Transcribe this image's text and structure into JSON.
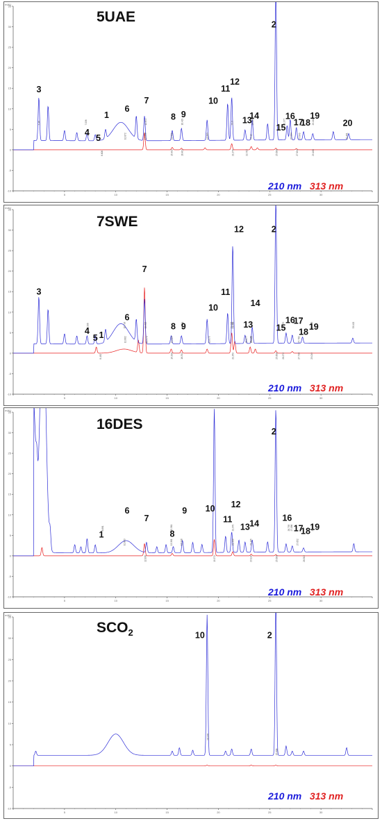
{
  "colors": {
    "nm210": "#2b2bd6",
    "nm313": "#e81e1e"
  },
  "legend": {
    "nm210": "210 nm",
    "nm313": "313 nm"
  },
  "chart_data": [
    {
      "type": "line",
      "title": "5UAE",
      "units": "mAU",
      "xlim": [
        0,
        35
      ],
      "ylim": [
        -10,
        35
      ],
      "yticks": [
        -10,
        -5,
        0,
        5,
        10,
        15,
        20,
        25,
        30,
        35
      ],
      "xticks": [
        0,
        5,
        10,
        15,
        20,
        25,
        30,
        35
      ],
      "xtick_labels": [
        "",
        "5",
        "10",
        "15",
        "20",
        "25",
        "30",
        ""
      ],
      "series": [
        {
          "name": "210 nm",
          "baseline": 2.5,
          "peaks": [
            [
              2.5,
              10.5
            ],
            [
              3.4,
              8.5
            ],
            [
              5.0,
              2.5
            ],
            [
              6.2,
              2.0
            ],
            [
              7.2,
              1.8
            ],
            [
              8.0,
              1.5
            ],
            [
              9.0,
              2.2
            ],
            [
              10.5,
              4.5
            ],
            [
              12.0,
              5.5
            ],
            [
              12.8,
              6.0
            ],
            [
              15.5,
              2.5
            ],
            [
              16.4,
              3.0
            ],
            [
              18.9,
              5.0
            ],
            [
              20.9,
              9.0
            ],
            [
              21.3,
              10.5
            ],
            [
              22.6,
              2.5
            ],
            [
              23.3,
              5.0
            ],
            [
              24.8,
              4.0
            ],
            [
              25.6,
              37.0
            ],
            [
              26.7,
              3.5
            ],
            [
              27.0,
              5.0
            ],
            [
              27.6,
              3.0
            ],
            [
              28.3,
              2.0
            ],
            [
              29.2,
              1.5
            ],
            [
              31.2,
              2.0
            ],
            [
              32.7,
              1.5
            ]
          ]
        },
        {
          "name": "313 nm",
          "baseline": 0.0,
          "peaks": [
            [
              12.8,
              4.2
            ],
            [
              15.5,
              0.6
            ],
            [
              16.4,
              0.4
            ],
            [
              18.7,
              0.5
            ],
            [
              21.3,
              1.5
            ],
            [
              23.2,
              0.8
            ],
            [
              23.8,
              0.5
            ],
            [
              25.6,
              0.4
            ],
            [
              27.6,
              0.3
            ]
          ]
        }
      ],
      "peak_labels": [
        {
          "text": "3",
          "x": 2.5,
          "y": 14
        },
        {
          "text": "4",
          "x": 7.2,
          "y": 3.5
        },
        {
          "text": "5",
          "x": 8.3,
          "y": 2.2
        },
        {
          "text": "1",
          "x": 9.1,
          "y": 7.8
        },
        {
          "text": "6",
          "x": 11.1,
          "y": 9.3
        },
        {
          "text": "7",
          "x": 13.0,
          "y": 11.3
        },
        {
          "text": "8",
          "x": 15.6,
          "y": 7.3
        },
        {
          "text": "9",
          "x": 16.6,
          "y": 7.9
        },
        {
          "text": "10",
          "x": 19.5,
          "y": 11.2
        },
        {
          "text": "11",
          "x": 20.7,
          "y": 14.2
        },
        {
          "text": "12",
          "x": 21.6,
          "y": 15.9
        },
        {
          "text": "13",
          "x": 22.8,
          "y": 6.5
        },
        {
          "text": "14",
          "x": 23.5,
          "y": 7.6
        },
        {
          "text": "2",
          "x": 25.4,
          "y": 29.8
        },
        {
          "text": "15",
          "x": 26.1,
          "y": 4.7
        },
        {
          "text": "16",
          "x": 27.0,
          "y": 7.5
        },
        {
          "text": "17",
          "x": 27.8,
          "y": 6.0
        },
        {
          "text": "18",
          "x": 28.5,
          "y": 5.9
        },
        {
          "text": "19",
          "x": 29.4,
          "y": 7.6
        },
        {
          "text": "20",
          "x": 32.6,
          "y": 5.8
        }
      ],
      "rt_labels": [
        "2.48",
        "12.838",
        "15.402",
        "16.429",
        "18.883",
        "21.370",
        "21.3",
        "23.12",
        "25.608",
        "26.377",
        "27.034",
        "27.634",
        "29.164",
        "32.461",
        "22.702",
        "23.293",
        "27.849",
        "29.168",
        "12.872",
        "10.872",
        "8.606",
        "7.038",
        "15.400",
        "16.402"
      ]
    },
    {
      "type": "line",
      "title": "7SWE",
      "units": "mAU",
      "xlim": [
        0,
        35
      ],
      "ylim": [
        -10,
        35
      ],
      "yticks": [
        -10,
        -5,
        0,
        5,
        10,
        15,
        20,
        25,
        30,
        35
      ],
      "xticks": [
        0,
        5,
        10,
        15,
        20,
        25,
        30,
        35
      ],
      "xtick_labels": [
        "",
        "5",
        "10",
        "15",
        "20",
        "25",
        "30",
        ""
      ],
      "series": [
        {
          "name": "210 nm",
          "baseline": 2.5,
          "peaks": [
            [
              2.5,
              11.5
            ],
            [
              3.4,
              8.5
            ],
            [
              5.0,
              2.5
            ],
            [
              6.2,
              2.0
            ],
            [
              7.2,
              2.0
            ],
            [
              8.0,
              2.0
            ],
            [
              9.0,
              3.0
            ],
            [
              10.5,
              5.0
            ],
            [
              12.0,
              5.5
            ],
            [
              12.8,
              11.0
            ],
            [
              15.4,
              2.0
            ],
            [
              16.4,
              2.0
            ],
            [
              18.9,
              6.0
            ],
            [
              20.9,
              7.5
            ],
            [
              21.4,
              24.0
            ],
            [
              22.6,
              2.0
            ],
            [
              23.3,
              4.0
            ],
            [
              25.6,
              35.0
            ],
            [
              26.6,
              2.5
            ],
            [
              27.2,
              2.0
            ],
            [
              28.2,
              1.5
            ],
            [
              33.1,
              1.2
            ]
          ]
        },
        {
          "name": "313 nm",
          "baseline": 0.0,
          "peaks": [
            [
              8.1,
              1.5
            ],
            [
              10.8,
              1.0
            ],
            [
              12.2,
              3.0
            ],
            [
              12.8,
              16.0
            ],
            [
              15.4,
              1.0
            ],
            [
              16.4,
              0.8
            ],
            [
              18.9,
              1.0
            ],
            [
              21.3,
              5.0
            ],
            [
              21.6,
              3.0
            ],
            [
              23.1,
              1.5
            ],
            [
              23.6,
              1.0
            ],
            [
              25.6,
              0.6
            ],
            [
              27.2,
              0.4
            ]
          ]
        }
      ],
      "peak_labels": [
        {
          "text": "3",
          "x": 2.5,
          "y": 14.3
        },
        {
          "text": "4",
          "x": 7.2,
          "y": 4.7
        },
        {
          "text": "5",
          "x": 8.0,
          "y": 3.0
        },
        {
          "text": "1",
          "x": 8.6,
          "y": 3.7
        },
        {
          "text": "6",
          "x": 11.1,
          "y": 8.0
        },
        {
          "text": "7",
          "x": 12.8,
          "y": 19.8
        },
        {
          "text": "8",
          "x": 15.6,
          "y": 5.8
        },
        {
          "text": "9",
          "x": 16.6,
          "y": 5.8
        },
        {
          "text": "10",
          "x": 19.5,
          "y": 10.4
        },
        {
          "text": "11",
          "x": 20.7,
          "y": 14.2
        },
        {
          "text": "12",
          "x": 22.0,
          "y": 29.5
        },
        {
          "text": "13",
          "x": 22.9,
          "y": 6.2
        },
        {
          "text": "14",
          "x": 23.6,
          "y": 11.5
        },
        {
          "text": "2",
          "x": 25.4,
          "y": 29.5
        },
        {
          "text": "15",
          "x": 26.1,
          "y": 5.5
        },
        {
          "text": "16",
          "x": 27.0,
          "y": 7.3
        },
        {
          "text": "17",
          "x": 27.8,
          "y": 7.2
        },
        {
          "text": "18",
          "x": 28.3,
          "y": 4.5
        },
        {
          "text": "19",
          "x": 29.3,
          "y": 5.7
        }
      ],
      "rt_labels": [
        "12.822",
        "12.970",
        "15.398",
        "16.458",
        "19.073",
        "21.359",
        "21.226",
        "23.140",
        "25.608",
        "26.270",
        "27.782",
        "29.049",
        "33.102",
        "10.862",
        "8.450",
        "7.206",
        "23.125",
        "27.796",
        "29.048",
        "22.677",
        "26.272",
        "21.366",
        "15.394",
        "16.392",
        "10.793"
      ]
    },
    {
      "type": "line",
      "title": "16DES",
      "units": "mAU",
      "xlim": [
        0,
        35
      ],
      "ylim": [
        -10,
        35
      ],
      "yticks": [
        -10,
        -5,
        0,
        5,
        10,
        15,
        20,
        25,
        30,
        35
      ],
      "xticks": [
        0,
        5,
        10,
        15,
        20,
        25,
        30,
        35
      ],
      "xtick_labels": [
        "",
        "5",
        "10",
        "15",
        "20",
        "25",
        "30",
        ""
      ],
      "series": [
        {
          "name": "210 nm",
          "baseline": 1.0,
          "peaks": [
            [
              1.9,
              40.0
            ],
            [
              2.3,
              6.0
            ],
            [
              2.9,
              60.0
            ],
            [
              3.6,
              4.0
            ],
            [
              6.0,
              2.0
            ],
            [
              6.6,
              1.5
            ],
            [
              7.2,
              3.5
            ],
            [
              8.0,
              2.0
            ],
            [
              11.0,
              3.0
            ],
            [
              13.0,
              2.5
            ],
            [
              14.0,
              1.5
            ],
            [
              14.9,
              2.0
            ],
            [
              15.6,
              1.5
            ],
            [
              16.5,
              3.0
            ],
            [
              17.5,
              2.5
            ],
            [
              18.4,
              2.0
            ],
            [
              19.6,
              35.0
            ],
            [
              20.7,
              4.0
            ],
            [
              21.3,
              5.0
            ],
            [
              22.0,
              3.0
            ],
            [
              22.6,
              2.5
            ],
            [
              23.3,
              3.0
            ],
            [
              24.8,
              2.5
            ],
            [
              25.6,
              35.0
            ],
            [
              26.6,
              2.0
            ],
            [
              27.2,
              1.5
            ],
            [
              28.3,
              1.0
            ],
            [
              33.2,
              2.0
            ]
          ]
        },
        {
          "name": "313 nm",
          "baseline": 0.0,
          "peaks": [
            [
              2.8,
              2.0
            ],
            [
              12.8,
              3.0
            ],
            [
              15.5,
              0.6
            ],
            [
              19.6,
              4.0
            ],
            [
              21.4,
              1.0
            ],
            [
              23.2,
              0.4
            ],
            [
              25.6,
              0.3
            ]
          ]
        }
      ],
      "peak_labels": [
        {
          "text": "1",
          "x": 8.6,
          "y": 4.5
        },
        {
          "text": "6",
          "x": 11.1,
          "y": 10.3
        },
        {
          "text": "7",
          "x": 13.0,
          "y": 8.4
        },
        {
          "text": "8",
          "x": 15.5,
          "y": 4.6
        },
        {
          "text": "9",
          "x": 16.7,
          "y": 10.3
        },
        {
          "text": "10",
          "x": 19.2,
          "y": 10.8
        },
        {
          "text": "11",
          "x": 20.9,
          "y": 8.2
        },
        {
          "text": "12",
          "x": 21.7,
          "y": 11.8
        },
        {
          "text": "13",
          "x": 22.6,
          "y": 6.3
        },
        {
          "text": "14",
          "x": 23.5,
          "y": 7.2
        },
        {
          "text": "2",
          "x": 25.4,
          "y": 29.6
        },
        {
          "text": "16",
          "x": 26.7,
          "y": 8.5
        },
        {
          "text": "17",
          "x": 27.8,
          "y": 6.0
        },
        {
          "text": "18",
          "x": 28.5,
          "y": 5.3
        },
        {
          "text": "19",
          "x": 29.4,
          "y": 6.3
        }
      ],
      "rt_labels": [
        "8.681",
        "10.803",
        "12.838",
        "15.361",
        "16.348",
        "19.572",
        "21.370",
        "23.135",
        "25.608",
        "26.795",
        "27.652",
        "28.302",
        "29.100",
        "21.366",
        "23.119",
        "27.086",
        "15.361"
      ]
    },
    {
      "type": "line",
      "title": "SCO2",
      "units": "mAU",
      "xlim": [
        0,
        35
      ],
      "ylim": [
        -10,
        35
      ],
      "yticks": [
        -10,
        -5,
        0,
        5,
        10,
        15,
        20,
        25,
        30,
        35
      ],
      "xticks": [
        0,
        5,
        10,
        15,
        20,
        25,
        30,
        35
      ],
      "xtick_labels": [
        "",
        "5",
        "10",
        "15",
        "20",
        "25",
        "30",
        ""
      ],
      "series": [
        {
          "name": "210 nm",
          "baseline": 2.5,
          "peaks": [
            [
              2.2,
              1.0
            ],
            [
              10.0,
              5.0
            ],
            [
              15.5,
              1.0
            ],
            [
              16.2,
              1.8
            ],
            [
              17.5,
              1.2
            ],
            [
              18.9,
              33.0
            ],
            [
              20.7,
              1.0
            ],
            [
              21.3,
              1.5
            ],
            [
              23.2,
              1.5
            ],
            [
              25.6,
              36.0
            ],
            [
              26.6,
              2.2
            ],
            [
              27.2,
              1.0
            ],
            [
              28.3,
              1.0
            ],
            [
              32.5,
              1.8
            ]
          ]
        },
        {
          "name": "313 nm",
          "baseline": 0.0,
          "peaks": [
            [
              18.9,
              0.2
            ],
            [
              23.2,
              0.2
            ],
            [
              25.6,
              0.2
            ]
          ]
        }
      ],
      "peak_labels": [
        {
          "text": "10",
          "x": 18.2,
          "y": 30.0
        },
        {
          "text": "2",
          "x": 25.0,
          "y": 30.0
        }
      ],
      "rt_labels": [
        "18.938",
        "25.608"
      ]
    }
  ]
}
